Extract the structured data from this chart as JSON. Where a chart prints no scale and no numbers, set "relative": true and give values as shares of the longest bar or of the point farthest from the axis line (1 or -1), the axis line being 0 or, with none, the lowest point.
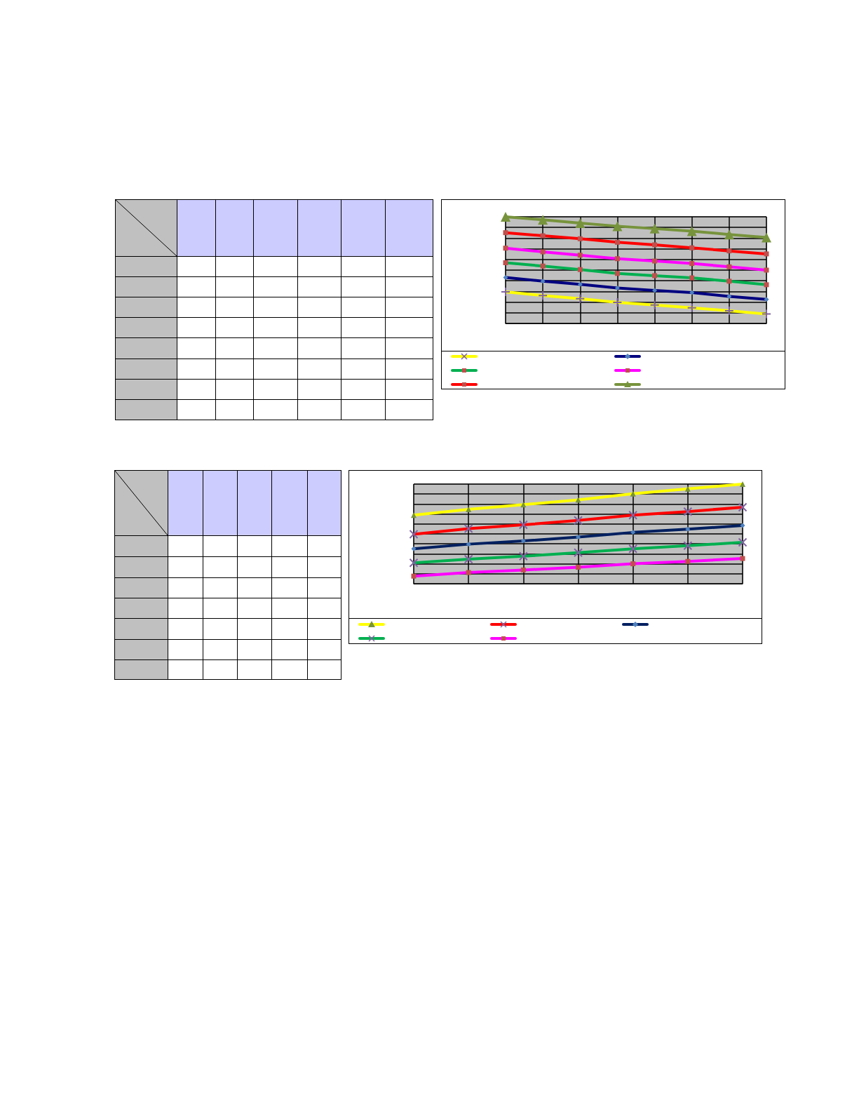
{
  "chart_data": [
    {
      "type": "line",
      "relative": true,
      "grid": true,
      "categories": [
        null,
        null,
        null,
        null,
        null,
        null,
        null,
        null
      ],
      "series": [
        {
          "color": "#ffff00",
          "marker": "cross",
          "values": [
            0.296,
            0.261,
            0.232,
            0.197,
            0.173,
            0.147,
            0.118,
            0.088
          ]
        },
        {
          "color": "#000080",
          "marker": "diamond",
          "values": [
            0.431,
            0.396,
            0.367,
            0.332,
            0.31,
            0.289,
            0.254,
            0.225
          ]
        },
        {
          "color": "#00b050",
          "marker": "square",
          "values": [
            0.569,
            0.538,
            0.505,
            0.469,
            0.448,
            0.427,
            0.396,
            0.363
          ]
        },
        {
          "color": "#ff00ff",
          "marker": "square",
          "values": [
            0.706,
            0.671,
            0.64,
            0.607,
            0.585,
            0.562,
            0.531,
            0.5
          ]
        },
        {
          "color": "#ff0000",
          "marker": "square",
          "values": [
            0.851,
            0.822,
            0.794,
            0.761,
            0.737,
            0.709,
            0.68,
            0.652
          ]
        },
        {
          "color": "#77933c",
          "marker": "triangle",
          "values": [
            1,
            0.972,
            0.941,
            0.912,
            0.889,
            0.865,
            0.834,
            0.806
          ]
        }
      ]
    },
    {
      "type": "line",
      "relative": true,
      "grid": true,
      "categories": [
        null,
        null,
        null,
        null,
        null,
        null,
        null
      ],
      "series": [
        {
          "color": "#ffff00",
          "marker": "triangle",
          "values": [
            0.688,
            0.747,
            0.794,
            0.841,
            0.903,
            0.953,
            1
          ]
        },
        {
          "color": "#ff0000",
          "marker": "cross",
          "values": [
            0.497,
            0.553,
            0.591,
            0.635,
            0.688,
            0.724,
            0.768
          ]
        },
        {
          "color": "#002060",
          "marker": "diamond",
          "values": [
            0.35,
            0.397,
            0.429,
            0.468,
            0.515,
            0.547,
            0.585
          ]
        },
        {
          "color": "#00b050",
          "marker": "cross",
          "values": [
            0.209,
            0.247,
            0.276,
            0.312,
            0.35,
            0.382,
            0.415
          ]
        },
        {
          "color": "#ff00ff",
          "marker": "square",
          "values": [
            0.076,
            0.112,
            0.138,
            0.165,
            0.2,
            0.224,
            0.253
          ]
        }
      ]
    }
  ]
}
